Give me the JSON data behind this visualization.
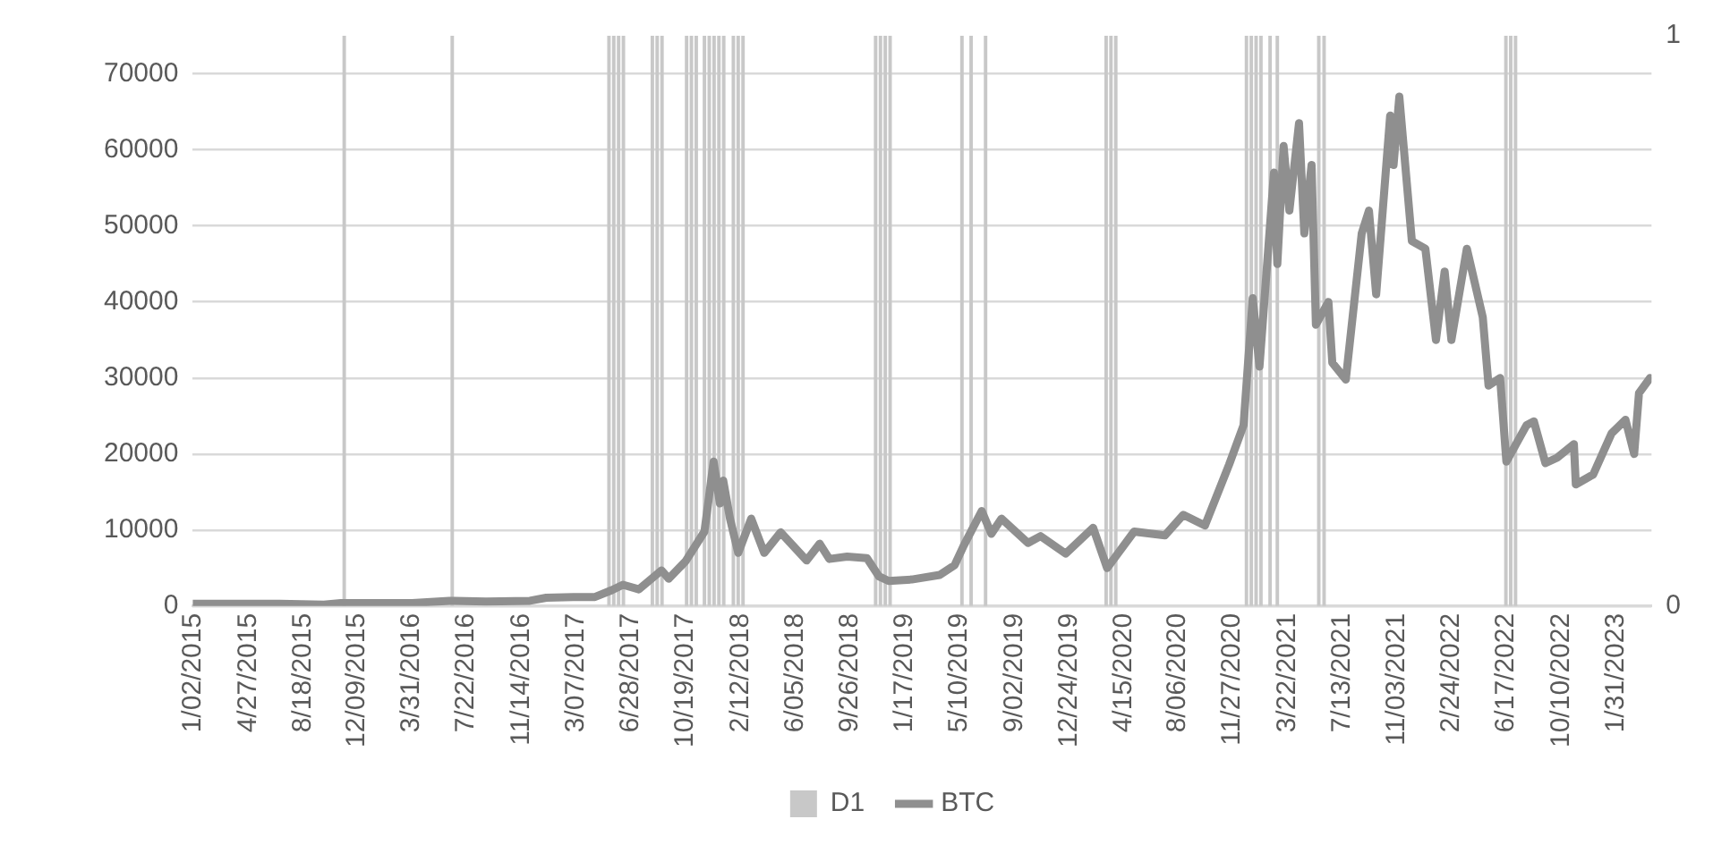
{
  "chart_data": {
    "type": "line",
    "xlim": [
      "2015-01-02",
      "2023-04-15"
    ],
    "xticks": [
      {
        "value": "2015-01-02",
        "label": "1/02/2015"
      },
      {
        "value": "2015-04-27",
        "label": "4/27/2015"
      },
      {
        "value": "2015-08-18",
        "label": "8/18/2015"
      },
      {
        "value": "2015-12-09",
        "label": "12/09/2015"
      },
      {
        "value": "2016-03-31",
        "label": "3/31/2016"
      },
      {
        "value": "2016-07-22",
        "label": "7/22/2016"
      },
      {
        "value": "2016-11-14",
        "label": "11/14/2016"
      },
      {
        "value": "2017-03-07",
        "label": "3/07/2017"
      },
      {
        "value": "2017-06-28",
        "label": "6/28/2017"
      },
      {
        "value": "2017-10-19",
        "label": "10/19/2017"
      },
      {
        "value": "2018-02-12",
        "label": "2/12/2018"
      },
      {
        "value": "2018-06-05",
        "label": "6/05/2018"
      },
      {
        "value": "2018-09-26",
        "label": "9/26/2018"
      },
      {
        "value": "2019-01-17",
        "label": "1/17/2019"
      },
      {
        "value": "2019-05-10",
        "label": "5/10/2019"
      },
      {
        "value": "2019-09-02",
        "label": "9/02/2019"
      },
      {
        "value": "2019-12-24",
        "label": "12/24/2019"
      },
      {
        "value": "2020-04-15",
        "label": "4/15/2020"
      },
      {
        "value": "2020-08-06",
        "label": "8/06/2020"
      },
      {
        "value": "2020-11-27",
        "label": "11/27/2020"
      },
      {
        "value": "2021-03-22",
        "label": "3/22/2021"
      },
      {
        "value": "2021-07-13",
        "label": "7/13/2021"
      },
      {
        "value": "2021-11-03",
        "label": "11/03/2021"
      },
      {
        "value": "2022-02-24",
        "label": "2/24/2022"
      },
      {
        "value": "2022-06-17",
        "label": "6/17/2022"
      },
      {
        "value": "2022-10-10",
        "label": "10/10/2022"
      },
      {
        "value": "2023-01-31",
        "label": "1/31/2023"
      }
    ],
    "ylim": [
      0,
      75000
    ],
    "yticks": [
      0,
      10000,
      20000,
      30000,
      40000,
      50000,
      60000,
      70000
    ],
    "y2lim": [
      0,
      1
    ],
    "y2ticks": [
      0,
      1
    ],
    "grid": "y",
    "legend": "bottom",
    "marker": "none",
    "series": [
      {
        "name": "D1",
        "type": "bar",
        "axis": "y2",
        "color": "#c8c8c8",
        "x": [
          "2015-11-12",
          "2016-06-23",
          "2017-05-14",
          "2017-05-24",
          "2017-06-03",
          "2017-06-13",
          "2017-08-12",
          "2017-08-22",
          "2017-09-01",
          "2017-10-22",
          "2017-11-01",
          "2017-11-11",
          "2017-11-28",
          "2017-12-08",
          "2017-12-18",
          "2017-12-28",
          "2018-01-07",
          "2018-01-27",
          "2018-02-06",
          "2018-02-16",
          "2018-11-18",
          "2018-11-28",
          "2018-12-08",
          "2018-12-18",
          "2019-05-16",
          "2019-06-04",
          "2019-07-04",
          "2020-03-10",
          "2020-03-20",
          "2020-03-30",
          "2020-12-26",
          "2021-01-05",
          "2021-01-15",
          "2021-01-25",
          "2021-02-13",
          "2021-02-28",
          "2021-05-25",
          "2021-06-05",
          "2022-06-17",
          "2022-06-27",
          "2022-07-07"
        ],
        "values": [
          1,
          1,
          1,
          1,
          1,
          1,
          1,
          1,
          1,
          1,
          1,
          1,
          1,
          1,
          1,
          1,
          1,
          1,
          1,
          1,
          1,
          1,
          1,
          1,
          1,
          1,
          1,
          1,
          1,
          1,
          1,
          1,
          1,
          1,
          1,
          1,
          1,
          1,
          1,
          1,
          1
        ]
      },
      {
        "name": "BTC",
        "color": "#8f8f8f",
        "x": [
          "2015-01-02",
          "2015-04-01",
          "2015-07-01",
          "2015-10-01",
          "2015-11-05",
          "2016-01-01",
          "2016-04-01",
          "2016-06-17",
          "2016-09-01",
          "2016-12-01",
          "2017-01-04",
          "2017-03-01",
          "2017-04-15",
          "2017-05-20",
          "2017-06-12",
          "2017-07-15",
          "2017-08-31",
          "2017-09-15",
          "2017-10-20",
          "2017-11-28",
          "2017-12-17",
          "2017-12-30",
          "2018-01-06",
          "2018-01-20",
          "2018-02-06",
          "2018-03-05",
          "2018-04-01",
          "2018-05-05",
          "2018-06-28",
          "2018-07-25",
          "2018-08-14",
          "2018-09-20",
          "2018-10-31",
          "2018-11-25",
          "2018-12-15",
          "2019-02-01",
          "2019-03-31",
          "2019-05-01",
          "2019-05-20",
          "2019-06-26",
          "2019-07-16",
          "2019-08-06",
          "2019-09-30",
          "2019-10-26",
          "2019-12-17",
          "2020-02-12",
          "2020-03-12",
          "2020-05-07",
          "2020-07-10",
          "2020-08-17",
          "2020-10-01",
          "2020-11-20",
          "2020-12-20",
          "2021-01-08",
          "2021-01-22",
          "2021-02-21",
          "2021-02-28",
          "2021-03-13",
          "2021-03-25",
          "2021-04-14",
          "2021-04-25",
          "2021-05-10",
          "2021-05-19",
          "2021-06-14",
          "2021-06-22",
          "2021-07-20",
          "2021-08-22",
          "2021-09-06",
          "2021-09-21",
          "2021-10-20",
          "2021-10-27",
          "2021-11-08",
          "2021-12-04",
          "2022-01-01",
          "2022-01-23",
          "2022-02-10",
          "2022-02-24",
          "2022-03-28",
          "2022-04-30",
          "2022-05-12",
          "2022-06-05",
          "2022-06-18",
          "2022-07-30",
          "2022-08-14",
          "2022-09-07",
          "2022-10-01",
          "2022-11-05",
          "2022-11-09",
          "2022-12-15",
          "2023-01-22",
          "2023-02-20",
          "2023-03-10",
          "2023-03-20",
          "2023-04-12"
        ],
        "values": [
          300,
          300,
          300,
          200,
          400,
          400,
          400,
          700,
          600,
          700,
          1100,
          1200,
          1200,
          2100,
          2800,
          2200,
          4700,
          3600,
          5900,
          9800,
          19000,
          13500,
          16500,
          11500,
          7000,
          11500,
          7000,
          9700,
          6000,
          8200,
          6200,
          6500,
          6300,
          3900,
          3300,
          3500,
          4100,
          5400,
          8000,
          12500,
          9500,
          11500,
          8300,
          9200,
          6900,
          10300,
          5000,
          9800,
          9300,
          12000,
          10600,
          18600,
          23800,
          40500,
          31500,
          57000,
          45000,
          60500,
          52000,
          63500,
          49000,
          58000,
          37000,
          40000,
          32000,
          29800,
          49000,
          52000,
          41000,
          64500,
          58000,
          67000,
          48000,
          47000,
          35000,
          44000,
          35000,
          47000,
          38000,
          29000,
          30000,
          19000,
          23800,
          24300,
          18800,
          19500,
          21300,
          16000,
          17300,
          22700,
          24500,
          20000,
          28000,
          30000
        ]
      }
    ]
  }
}
